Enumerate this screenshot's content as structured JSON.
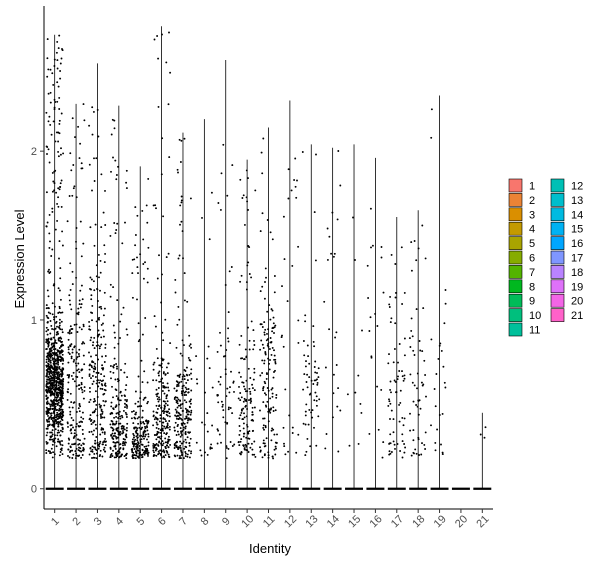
{
  "chart_data": {
    "type": "violin",
    "title": "",
    "xlabel": "Identity",
    "ylabel": "Expression Level",
    "categories": [
      "1",
      "2",
      "3",
      "4",
      "5",
      "6",
      "7",
      "8",
      "9",
      "10",
      "11",
      "12",
      "13",
      "14",
      "15",
      "16",
      "17",
      "18",
      "19",
      "20",
      "21"
    ],
    "yticks": [
      0,
      1,
      2
    ],
    "ylim": [
      -0.12,
      2.86
    ],
    "grid": false,
    "legend_position": "right",
    "jitter": true,
    "series": [
      {
        "category": "1",
        "max": 2.69,
        "center": 0.62,
        "spread": 0.18,
        "n_expr": 900,
        "color": "#F8766D"
      },
      {
        "category": "2",
        "max": 2.28,
        "center": 0.55,
        "spread": 0.35,
        "n_expr": 220,
        "color": "#EB8335"
      },
      {
        "category": "3",
        "max": 2.52,
        "center": 0.6,
        "spread": 0.35,
        "n_expr": 240,
        "color": "#DA8F00"
      },
      {
        "category": "4",
        "max": 2.27,
        "center": 0.35,
        "spread": 0.2,
        "n_expr": 230,
        "color": "#C49A00"
      },
      {
        "category": "5",
        "max": 1.91,
        "center": 0.28,
        "spread": 0.14,
        "n_expr": 210,
        "color": "#A9A400"
      },
      {
        "category": "6",
        "max": 2.74,
        "center": 0.4,
        "spread": 0.22,
        "n_expr": 240,
        "color": "#86AC00"
      },
      {
        "category": "7",
        "max": 2.11,
        "center": 0.42,
        "spread": 0.2,
        "n_expr": 240,
        "color": "#53B400"
      },
      {
        "category": "8",
        "max": 2.19,
        "center": 0.4,
        "spread": 0.3,
        "n_expr": 25,
        "color": "#00B81F"
      },
      {
        "category": "9",
        "max": 2.54,
        "center": 0.5,
        "spread": 0.22,
        "n_expr": 60,
        "color": "#00BC59"
      },
      {
        "category": "10",
        "max": 1.95,
        "center": 0.45,
        "spread": 0.22,
        "n_expr": 140,
        "color": "#00BF7D"
      },
      {
        "category": "11",
        "max": 2.14,
        "center": 0.55,
        "spread": 0.3,
        "n_expr": 150,
        "color": "#00C09B"
      },
      {
        "category": "12",
        "max": 2.3,
        "center": 0.9,
        "spread": 0.6,
        "n_expr": 30,
        "color": "#00C0B5"
      },
      {
        "category": "13",
        "max": 2.04,
        "center": 0.55,
        "spread": 0.2,
        "n_expr": 60,
        "color": "#00BECC"
      },
      {
        "category": "14",
        "max": 2.02,
        "center": 0.8,
        "spread": 0.5,
        "n_expr": 25,
        "color": "#00BAE0"
      },
      {
        "category": "15",
        "max": 2.04,
        "center": 0.8,
        "spread": 0.5,
        "n_expr": 10,
        "color": "#00B2F3"
      },
      {
        "category": "16",
        "max": 1.96,
        "center": 0.7,
        "spread": 0.5,
        "n_expr": 20,
        "color": "#00A6FF"
      },
      {
        "category": "17",
        "max": 1.61,
        "center": 0.6,
        "spread": 0.3,
        "n_expr": 70,
        "color": "#7F96FF"
      },
      {
        "category": "18",
        "max": 1.65,
        "center": 0.55,
        "spread": 0.3,
        "n_expr": 55,
        "color": "#B983FF"
      },
      {
        "category": "19",
        "max": 2.33,
        "center": 0.5,
        "spread": 0.3,
        "n_expr": 25,
        "color": "#DE71F9"
      },
      {
        "category": "20",
        "max": 0.0,
        "center": 0.0,
        "spread": 0.0,
        "n_expr": 0,
        "color": "#F365E6"
      },
      {
        "category": "21",
        "max": 0.45,
        "center": 0.35,
        "spread": 0.1,
        "n_expr": 3,
        "color": "#FF61C9"
      }
    ]
  }
}
